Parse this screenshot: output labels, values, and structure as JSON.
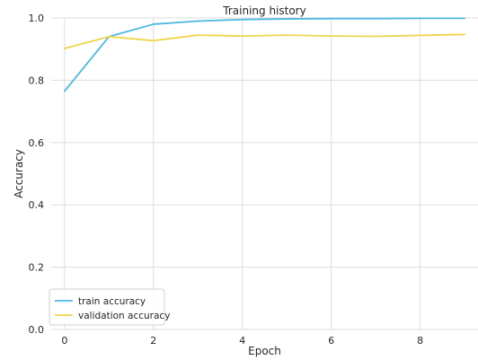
{
  "chart_data": {
    "type": "line",
    "title": "Training history",
    "xlabel": "Epoch",
    "ylabel": "Accuracy",
    "xlim": [
      -0.3,
      9.3
    ],
    "ylim": [
      0.0,
      1.0
    ],
    "xticks": [
      0,
      2,
      4,
      6,
      8
    ],
    "yticks": [
      0.0,
      0.2,
      0.4,
      0.6,
      0.8,
      1.0
    ],
    "grid": true,
    "legend_position": "lower-left",
    "x": [
      0,
      1,
      2,
      3,
      4,
      5,
      6,
      7,
      8,
      9
    ],
    "series": [
      {
        "name": "train accuracy",
        "color": "#4db8e0",
        "values": [
          0.765,
          0.94,
          0.98,
          0.99,
          0.995,
          0.997,
          0.998,
          0.998,
          0.999,
          0.999
        ]
      },
      {
        "name": "validation accuracy",
        "color": "#f0d44d",
        "values": [
          0.902,
          0.94,
          0.927,
          0.945,
          0.942,
          0.945,
          0.942,
          0.941,
          0.944,
          0.947
        ]
      }
    ]
  }
}
